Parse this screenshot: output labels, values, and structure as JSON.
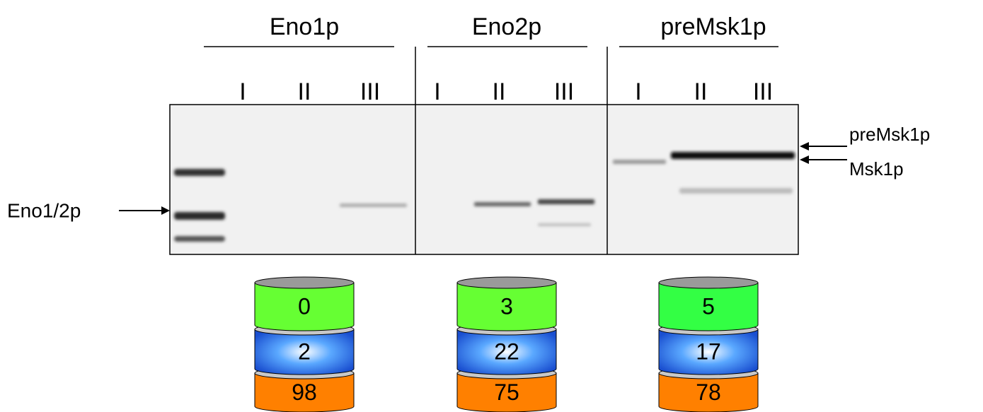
{
  "groups": [
    {
      "title": "Eno1p",
      "lanes": [
        "I",
        "II",
        "III"
      ],
      "cylinder": [
        0,
        2,
        98
      ]
    },
    {
      "title": "Eno2p",
      "lanes": [
        "I",
        "II",
        "III"
      ],
      "cylinder": [
        3,
        22,
        75
      ]
    },
    {
      "title": "preMsk1p",
      "lanes": [
        "I",
        "II",
        "III"
      ],
      "cylinder": [
        5,
        17,
        78
      ]
    }
  ],
  "labels": {
    "left": "Eno1/2p",
    "right_top": "preMsk1p",
    "right_bottom": "Msk1p"
  }
}
